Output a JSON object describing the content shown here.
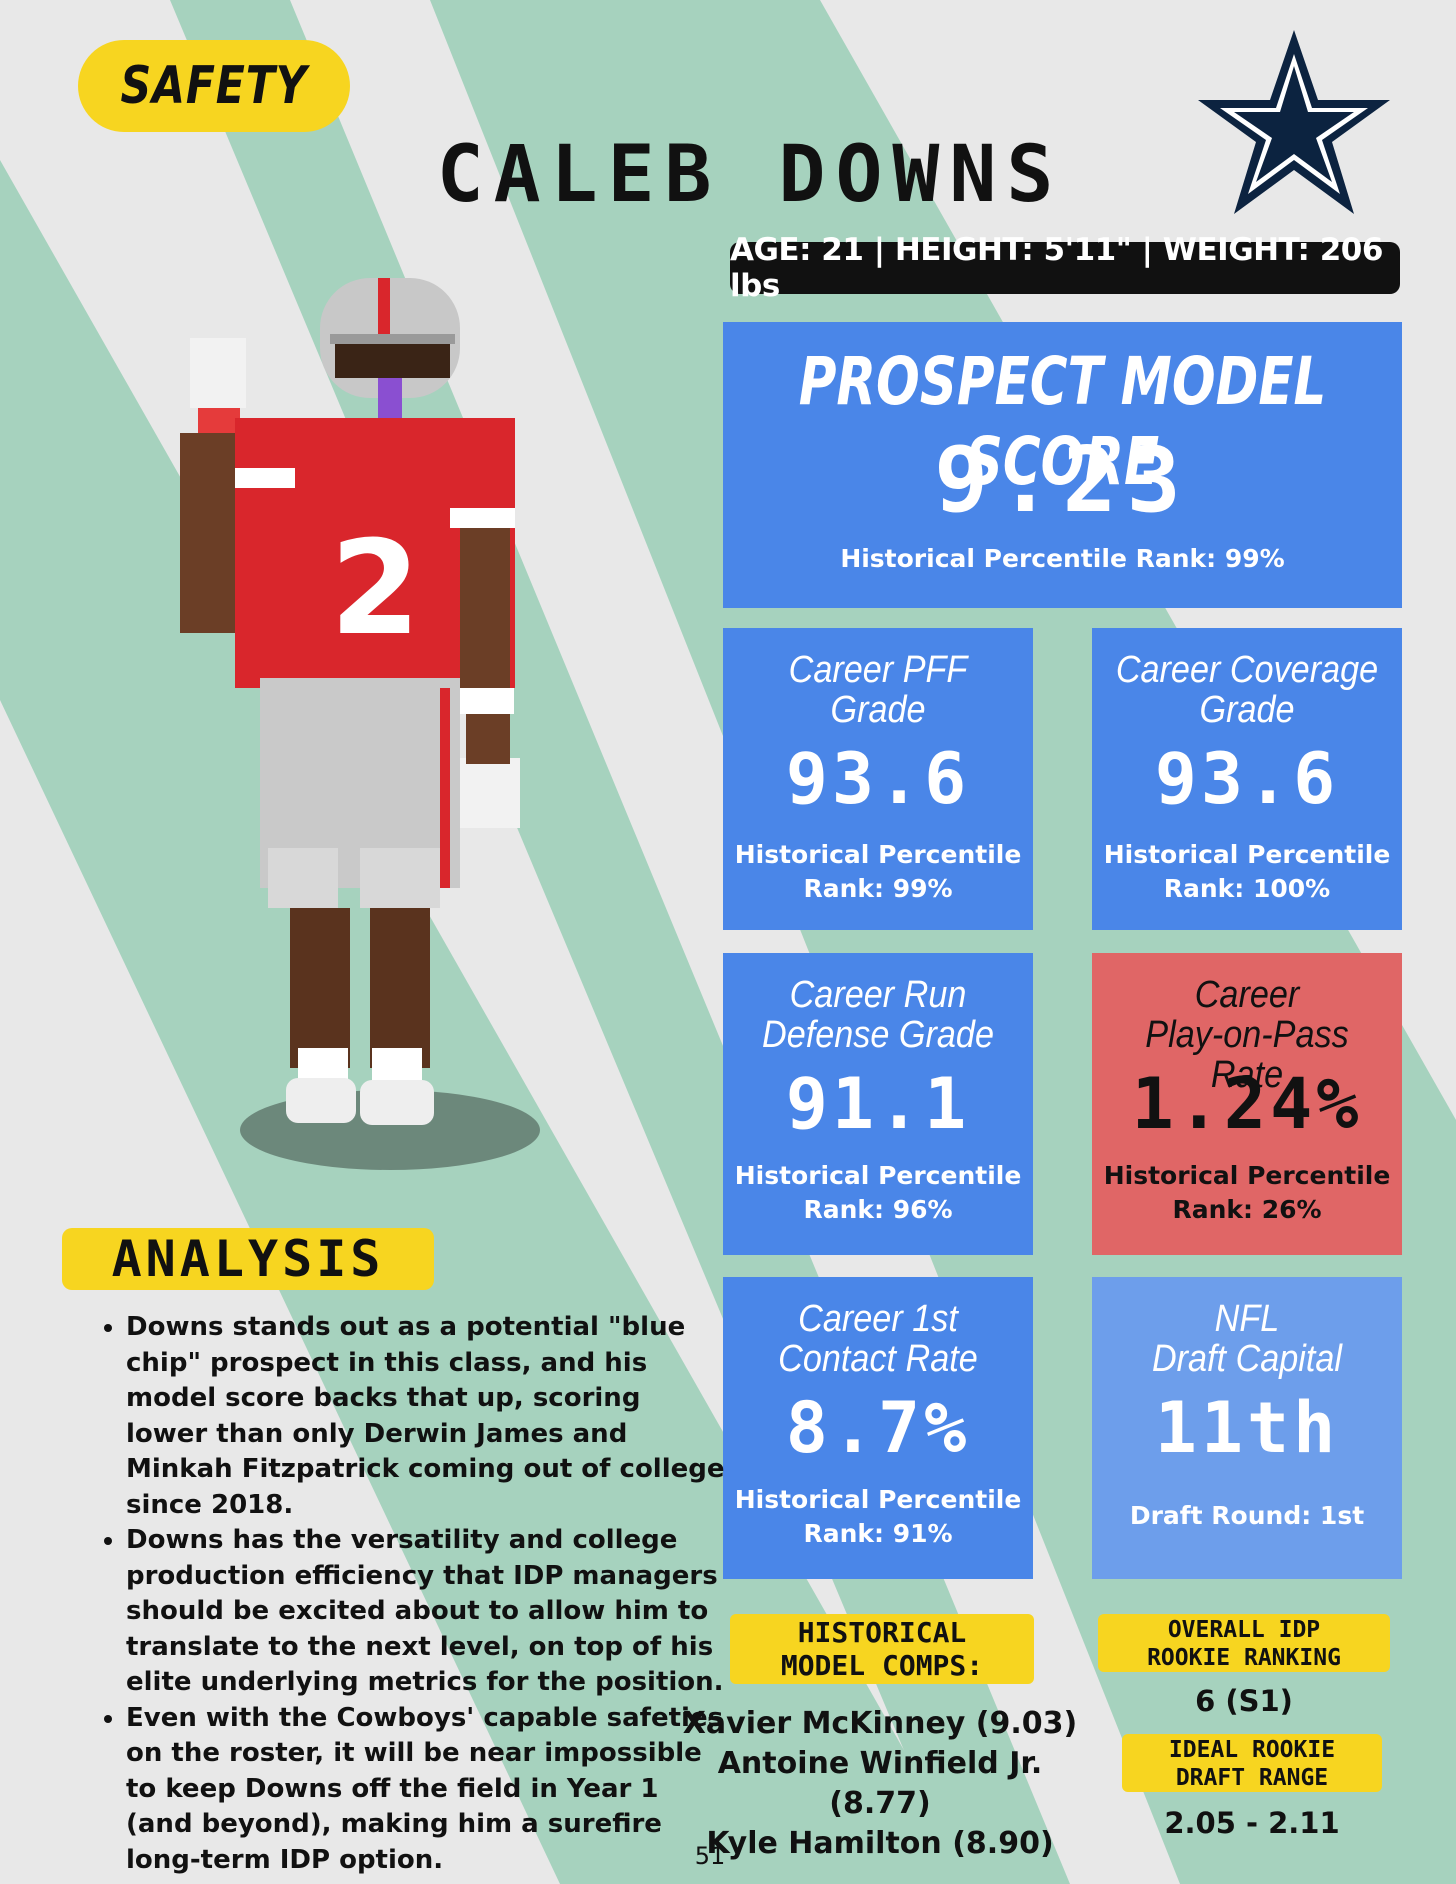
{
  "position": "SAFETY",
  "player": {
    "name": "CALEB DOWNS",
    "info": "AGE: 21 | HEIGHT: 5'11\" | WEIGHT: 206 lbs",
    "jersey_number": "2"
  },
  "team_logo_icon": "dallas-star-icon",
  "colors": {
    "stripe_green": "#a6d2be",
    "stat_blue": "#4a86e8",
    "stat_red": "#e06666",
    "stat_light_blue": "#6d9eeb",
    "tag_yellow": "#f7d520",
    "jersey_red": "#d9262c",
    "star_navy": "#0c2340"
  },
  "prospect_model": {
    "label": "PROSPECT MODEL SCORE",
    "value": "9.23",
    "sub": "Historical  Percentile Rank: 99%"
  },
  "stats": [
    {
      "label_line1": "Career PFF",
      "label_line2": "Grade",
      "value": "93.6",
      "sub_line1": "Historical  Percentile",
      "sub_line2": "Rank: 99%"
    },
    {
      "label_line1": "Career Coverage",
      "label_line2": "Grade",
      "value": "93.6",
      "sub_line1": "Historical  Percentile",
      "sub_line2": "Rank: 100%"
    },
    {
      "label_line1": "Career Run",
      "label_line2": "Defense Grade",
      "value": "91.1",
      "sub_line1": "Historical  Percentile",
      "sub_line2": "Rank: 96%"
    },
    {
      "label_line1": "Career",
      "label_line2": "Play-on-Pass Rate",
      "value": "1.24%",
      "sub_line1": "Historical  Percentile",
      "sub_line2": "Rank: 26%"
    },
    {
      "label_line1": "Career 1st",
      "label_line2": "Contact Rate",
      "value": "8.7%",
      "sub_line1": "Historical  Percentile",
      "sub_line2": "Rank: 91%"
    },
    {
      "label_line1": "NFL",
      "label_line2": "Draft Capital",
      "value": "11th",
      "sub_line1": "Draft Round: 1st",
      "sub_line2": ""
    }
  ],
  "analysis": {
    "title": "ANALYSIS",
    "bullets": [
      "Downs stands out as a potential \"blue chip\" prospect in this class, and his model score backs that up, scoring lower than only Derwin James and Minkah Fitzpatrick coming out of college since 2018.",
      "Downs has the versatility and college production efficiency that IDP managers should be excited about to allow him to translate to the next level, on top of his elite underlying metrics for the position.",
      "Even with the Cowboys' capable safeties on the roster, it will be near impossible to keep Downs off the field in Year 1 (and beyond), making him a surefire long-term IDP option."
    ]
  },
  "comps": {
    "title_line1": "HISTORICAL",
    "title_line2": "MODEL COMPS:",
    "items": [
      "Xavier McKinney (9.03)",
      "Antoine Winfield Jr. (8.77)",
      "Kyle Hamilton (8.90)"
    ]
  },
  "ranking": {
    "title_line1": "OVERALL IDP",
    "title_line2": "ROOKIE RANKING",
    "value": "6 (S1)"
  },
  "draft_range": {
    "title_line1": "IDEAL ROOKIE",
    "title_line2": "DRAFT RANGE",
    "value": "2.05 - 2.11"
  },
  "page_number": "51"
}
